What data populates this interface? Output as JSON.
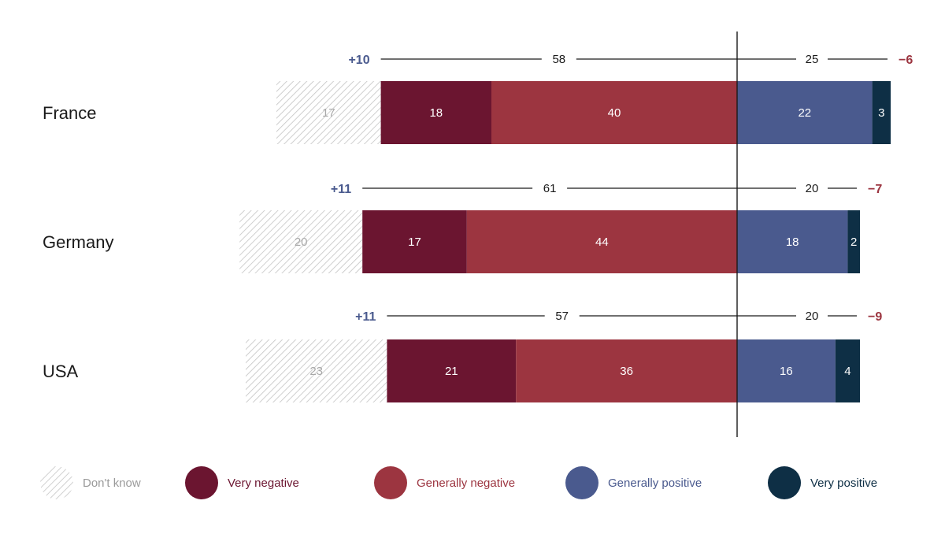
{
  "chart_data": {
    "type": "bar",
    "subtype": "diverging-stacked-horizontal",
    "categories": [
      "France",
      "Germany",
      "USA"
    ],
    "series": [
      {
        "name": "Don't know",
        "values": [
          17,
          20,
          23
        ],
        "color": "hatched-gray"
      },
      {
        "name": "Very negative",
        "values": [
          18,
          17,
          21
        ],
        "color": "#6b1530"
      },
      {
        "name": "Generally negative",
        "values": [
          40,
          44,
          36
        ],
        "color": "#9c3540"
      },
      {
        "name": "Generally positive",
        "values": [
          22,
          18,
          16
        ],
        "color": "#4a5a8e"
      },
      {
        "name": "Very positive",
        "values": [
          3,
          2,
          4
        ],
        "color": "#0e2f45"
      }
    ],
    "negative_totals": [
      58,
      61,
      57
    ],
    "positive_totals": [
      25,
      20,
      20
    ],
    "left_net_labels": [
      "+10",
      "+11",
      "+11"
    ],
    "right_net_labels": [
      "−6",
      "−7",
      "−9"
    ],
    "left_net_color": "#4a5a8e",
    "right_net_color": "#9c3540",
    "legend_position": "bottom",
    "grid": false
  }
}
